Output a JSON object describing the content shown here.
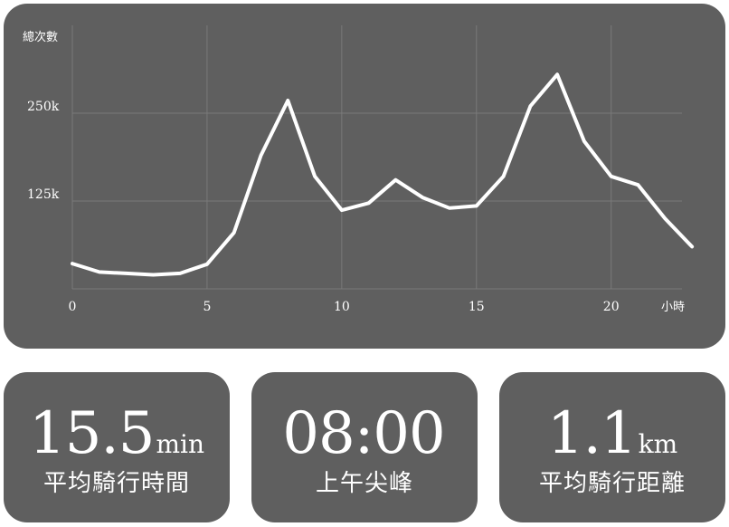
{
  "chart_data": {
    "type": "line",
    "ylabel": "總次數",
    "xlabel": "小時",
    "x_ticks": [
      0,
      5,
      10,
      15,
      20
    ],
    "y_ticks": [
      125000,
      250000
    ],
    "y_tick_labels": [
      "125k",
      "250k"
    ],
    "xlim": [
      0,
      23.3
    ],
    "ylim": [
      0,
      375000
    ],
    "grid": true,
    "series": [
      {
        "x": [
          0,
          1,
          2,
          3,
          4,
          5,
          6,
          7,
          8,
          9,
          10,
          11,
          12,
          13,
          14,
          15,
          16,
          17,
          18,
          19,
          20,
          21,
          22,
          23
        ],
        "values": [
          36000,
          24000,
          22000,
          20000,
          22000,
          35000,
          80000,
          190000,
          268000,
          160000,
          112000,
          122000,
          155000,
          130000,
          115000,
          118000,
          160000,
          260000,
          305000,
          210000,
          160000,
          148000,
          100000,
          60000
        ]
      }
    ],
    "colors": {
      "line": "#ffffff",
      "grid": "#7a7a7a",
      "panel": "#5f5f5f"
    }
  },
  "cards": [
    {
      "value": "15.5",
      "unit": "min",
      "label": "平均騎行時間"
    },
    {
      "value": "08:00",
      "unit": "",
      "label": "上午尖峰"
    },
    {
      "value": "1.1",
      "unit": "km",
      "label": "平均騎行距離"
    }
  ]
}
